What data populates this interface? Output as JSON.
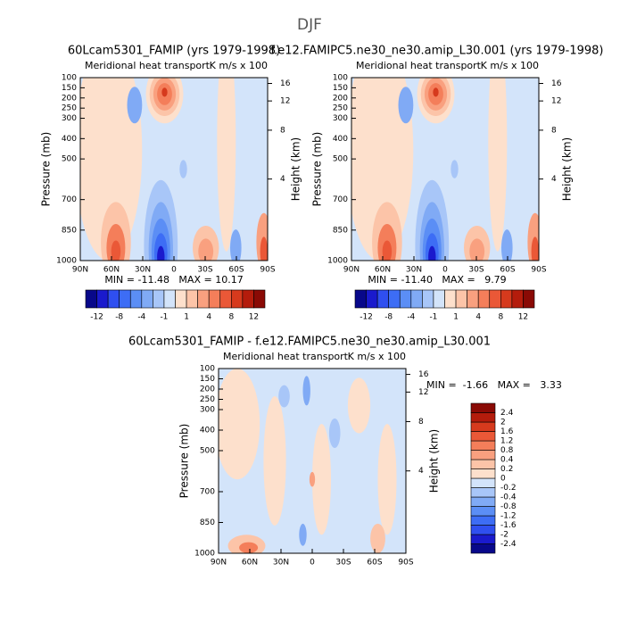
{
  "title": "DJF",
  "chart_data": [
    {
      "type": "contour",
      "title": "60Lcam5301_FAMIP (yrs 1979-1998)",
      "subtitle_left": "Meridional heat transport",
      "subtitle_right": "K m/s x 100",
      "ylabel": "Pressure (mb)",
      "y2label": "Height (km)",
      "xlim": [
        90,
        -90
      ],
      "xticks": [
        {
          "value": 90,
          "label": "90N"
        },
        {
          "value": 60,
          "label": "60N"
        },
        {
          "value": 30,
          "label": "30N"
        },
        0,
        {
          "value": -30,
          "label": "30S"
        },
        {
          "value": -60,
          "label": "60S"
        },
        {
          "value": -90,
          "label": "90S"
        }
      ],
      "ylim": [
        1000,
        100
      ],
      "yticks": [
        100,
        150,
        200,
        250,
        300,
        400,
        500,
        700,
        850,
        1000
      ],
      "y2ticks": [
        4,
        8,
        12,
        16
      ],
      "stats": "MIN = -11.48   MAX = 10.17",
      "colorbar": {
        "orientation": "horizontal",
        "colors": [
          "#08088a",
          "#1a1acd",
          "#2f4ff0",
          "#3d6df5",
          "#5b8ef5",
          "#80aaf5",
          "#a8c6f8",
          "#d3e4fa",
          "#fde0cc",
          "#fcc4a8",
          "#f9a07f",
          "#f47e5a",
          "#ea5837",
          "#d63a1d",
          "#b41c0c",
          "#8a0a05"
        ],
        "labels": [
          -12,
          -8,
          -4,
          -1,
          1,
          4,
          8,
          12
        ]
      }
    },
    {
      "type": "contour",
      "title": "f.e12.FAMIPC5.ne30_ne30.amip_L30.001 (yrs 1979-1998)",
      "subtitle_left": "Meridional heat transport",
      "subtitle_right": "K m/s x 100",
      "ylabel": "Pressure (mb)",
      "y2label": "Height (km)",
      "xlim": [
        90,
        -90
      ],
      "xticks": [
        {
          "value": 90,
          "label": "90N"
        },
        {
          "value": 60,
          "label": "60N"
        },
        {
          "value": 30,
          "label": "30N"
        },
        0,
        {
          "value": -30,
          "label": "30S"
        },
        {
          "value": -60,
          "label": "60S"
        },
        {
          "value": -90,
          "label": "90S"
        }
      ],
      "ylim": [
        1000,
        100
      ],
      "yticks": [
        100,
        150,
        200,
        250,
        300,
        400,
        500,
        700,
        850,
        1000
      ],
      "y2ticks": [
        4,
        8,
        12,
        16
      ],
      "stats": "MIN = -11.40   MAX =   9.79",
      "colorbar": {
        "orientation": "horizontal",
        "colors": [
          "#08088a",
          "#1a1acd",
          "#2f4ff0",
          "#3d6df5",
          "#5b8ef5",
          "#80aaf5",
          "#a8c6f8",
          "#d3e4fa",
          "#fde0cc",
          "#fcc4a8",
          "#f9a07f",
          "#f47e5a",
          "#ea5837",
          "#d63a1d",
          "#b41c0c",
          "#8a0a05"
        ],
        "labels": [
          -12,
          -8,
          -4,
          -1,
          1,
          4,
          8,
          12
        ]
      }
    },
    {
      "type": "contour",
      "title": "60Lcam5301_FAMIP - f.e12.FAMIPC5.ne30_ne30.amip_L30.001",
      "subtitle_left": "Meridional heat transport",
      "subtitle_right": "K m/s x 100",
      "ylabel": "Pressure (mb)",
      "y2label": "Height (km)",
      "xlim": [
        90,
        -90
      ],
      "xticks": [
        {
          "value": 90,
          "label": "90N"
        },
        {
          "value": 60,
          "label": "60N"
        },
        {
          "value": 30,
          "label": "30N"
        },
        0,
        {
          "value": -30,
          "label": "30S"
        },
        {
          "value": -60,
          "label": "60S"
        },
        {
          "value": -90,
          "label": "90S"
        }
      ],
      "ylim": [
        1000,
        100
      ],
      "yticks": [
        100,
        150,
        200,
        250,
        300,
        400,
        500,
        700,
        850,
        1000
      ],
      "y2ticks": [
        4,
        8,
        12,
        16
      ],
      "stats": "MIN =  -1.66   MAX =   3.33",
      "colorbar": {
        "orientation": "vertical",
        "colors": [
          "#08088a",
          "#1a1acd",
          "#2f4ff0",
          "#3d6df5",
          "#5b8ef5",
          "#80aaf5",
          "#a8c6f8",
          "#d3e4fa",
          "#fde0cc",
          "#fcc4a8",
          "#f9a07f",
          "#f47e5a",
          "#ea5837",
          "#d63a1d",
          "#b41c0c",
          "#8a0a05"
        ],
        "labels": [
          -2.4,
          -2,
          -1.6,
          -1.2,
          -0.8,
          -0.4,
          -0.2,
          0,
          0.2,
          0.4,
          0.8,
          1.2,
          1.6,
          2,
          2.4
        ]
      }
    }
  ]
}
